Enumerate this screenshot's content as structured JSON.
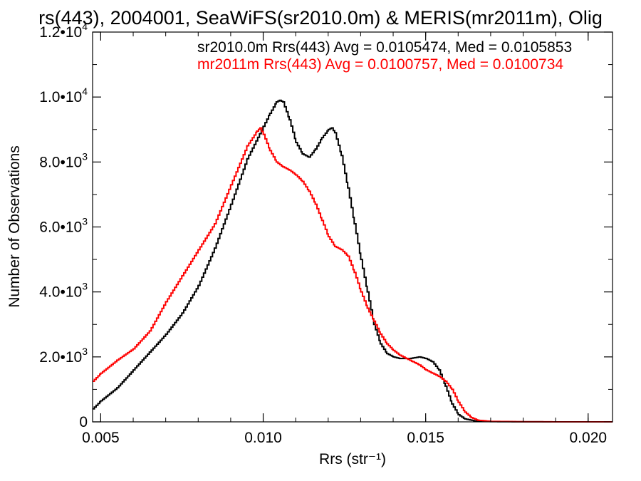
{
  "chart_data": {
    "type": "line",
    "title": "rs(443), 2004001, SeaWiFS(sr2010.0m) & MERIS(mr2011m), Olig",
    "xlabel": "Rrs (str⁻¹)",
    "ylabel": "Number of Observations",
    "xlim": [
      0.00475,
      0.02075
    ],
    "ylim": [
      0,
      12000
    ],
    "x_ticks": [
      {
        "value": 0.005,
        "label": "0.005"
      },
      {
        "value": 0.01,
        "label": "0.010"
      },
      {
        "value": 0.015,
        "label": "0.015"
      },
      {
        "value": 0.02,
        "label": "0.020"
      }
    ],
    "y_ticks": [
      {
        "value": 0,
        "mant": "0",
        "exp": ""
      },
      {
        "value": 2000,
        "mant": "2.0•10",
        "exp": "3"
      },
      {
        "value": 4000,
        "mant": "4.0•10",
        "exp": "3"
      },
      {
        "value": 6000,
        "mant": "6.0•10",
        "exp": "3"
      },
      {
        "value": 8000,
        "mant": "8.0•10",
        "exp": "3"
      },
      {
        "value": 10000,
        "mant": "1.0•10",
        "exp": "4"
      },
      {
        "value": 12000,
        "mant": "1.2•10",
        "exp": "4"
      }
    ],
    "grid": false,
    "legend_position": "top-right",
    "series": [
      {
        "name": "sr2010.0m Rrs(443) Avg = 0.0105474, Med = 0.0105853",
        "color": "#000000",
        "points": [
          [
            0.00475,
            400
          ],
          [
            0.005,
            650
          ],
          [
            0.0055,
            1050
          ],
          [
            0.006,
            1600
          ],
          [
            0.0065,
            2150
          ],
          [
            0.007,
            2700
          ],
          [
            0.0075,
            3350
          ],
          [
            0.008,
            4200
          ],
          [
            0.0085,
            5350
          ],
          [
            0.009,
            6700
          ],
          [
            0.0095,
            8100
          ],
          [
            0.01,
            9100
          ],
          [
            0.0102,
            9500
          ],
          [
            0.0104,
            9850
          ],
          [
            0.0105,
            9900
          ],
          [
            0.0106,
            9850
          ],
          [
            0.0108,
            9300
          ],
          [
            0.011,
            8600
          ],
          [
            0.0112,
            8250
          ],
          [
            0.0114,
            8150
          ],
          [
            0.0116,
            8400
          ],
          [
            0.0118,
            8750
          ],
          [
            0.012,
            9000
          ],
          [
            0.0121,
            9050
          ],
          [
            0.0122,
            8900
          ],
          [
            0.0124,
            8200
          ],
          [
            0.0126,
            7200
          ],
          [
            0.0128,
            6100
          ],
          [
            0.013,
            5000
          ],
          [
            0.0132,
            4000
          ],
          [
            0.0134,
            3000
          ],
          [
            0.0136,
            2400
          ],
          [
            0.0138,
            2100
          ],
          [
            0.014,
            2000
          ],
          [
            0.0142,
            1950
          ],
          [
            0.0145,
            1950
          ],
          [
            0.0148,
            2000
          ],
          [
            0.015,
            1950
          ],
          [
            0.0152,
            1850
          ],
          [
            0.0154,
            1600
          ],
          [
            0.0156,
            1100
          ],
          [
            0.0158,
            550
          ],
          [
            0.016,
            220
          ],
          [
            0.0162,
            90
          ],
          [
            0.0165,
            30
          ],
          [
            0.017,
            8
          ],
          [
            0.018,
            2
          ],
          [
            0.019,
            1
          ],
          [
            0.02075,
            0
          ]
        ]
      },
      {
        "name": "mr2011m Rrs(443) Avg = 0.0100757, Med = 0.0100734",
        "color": "#ff0000",
        "points": [
          [
            0.00475,
            1250
          ],
          [
            0.005,
            1500
          ],
          [
            0.0055,
            1900
          ],
          [
            0.006,
            2250
          ],
          [
            0.0065,
            2800
          ],
          [
            0.007,
            3700
          ],
          [
            0.0075,
            4500
          ],
          [
            0.008,
            5300
          ],
          [
            0.0085,
            6100
          ],
          [
            0.009,
            7300
          ],
          [
            0.0095,
            8500
          ],
          [
            0.0098,
            8950
          ],
          [
            0.0099,
            9050
          ],
          [
            0.01,
            8850
          ],
          [
            0.0102,
            8350
          ],
          [
            0.0104,
            8000
          ],
          [
            0.0106,
            7850
          ],
          [
            0.0108,
            7750
          ],
          [
            0.011,
            7600
          ],
          [
            0.0112,
            7400
          ],
          [
            0.0114,
            7100
          ],
          [
            0.0116,
            6700
          ],
          [
            0.0118,
            6200
          ],
          [
            0.012,
            5700
          ],
          [
            0.0122,
            5400
          ],
          [
            0.0124,
            5300
          ],
          [
            0.0126,
            5100
          ],
          [
            0.0128,
            4600
          ],
          [
            0.013,
            4000
          ],
          [
            0.0132,
            3500
          ],
          [
            0.0134,
            3100
          ],
          [
            0.0136,
            2700
          ],
          [
            0.0138,
            2400
          ],
          [
            0.014,
            2200
          ],
          [
            0.0142,
            2050
          ],
          [
            0.0144,
            1950
          ],
          [
            0.0146,
            1850
          ],
          [
            0.0148,
            1750
          ],
          [
            0.015,
            1600
          ],
          [
            0.0152,
            1500
          ],
          [
            0.0154,
            1400
          ],
          [
            0.0156,
            1250
          ],
          [
            0.0158,
            1000
          ],
          [
            0.016,
            600
          ],
          [
            0.0162,
            300
          ],
          [
            0.0164,
            130
          ],
          [
            0.0166,
            50
          ],
          [
            0.017,
            15
          ],
          [
            0.018,
            4
          ],
          [
            0.019,
            1
          ],
          [
            0.02075,
            0
          ]
        ]
      }
    ]
  }
}
